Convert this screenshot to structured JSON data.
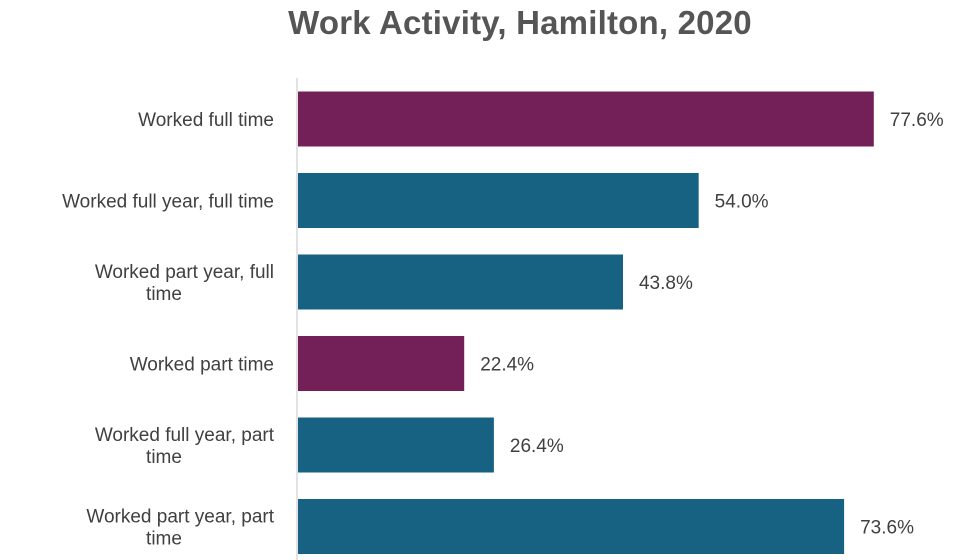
{
  "chart_data": {
    "type": "bar",
    "orientation": "horizontal",
    "title": "Work Activity, Hamilton, 2020",
    "categories": [
      "Worked full time",
      "Worked full year, full time",
      "Worked part year, full time",
      "Worked part time",
      "Worked full year, part time",
      "Worked part year, part time"
    ],
    "category_lines": [
      [
        "Worked full time"
      ],
      [
        "Worked full year, full time"
      ],
      [
        "Worked part year, full",
        "time"
      ],
      [
        "Worked part time"
      ],
      [
        "Worked full year, part",
        "time"
      ],
      [
        "Worked part year, part",
        "time"
      ]
    ],
    "values": [
      77.6,
      54.0,
      43.8,
      22.4,
      26.4,
      73.6
    ],
    "value_labels": [
      "77.6%",
      "54.0%",
      "43.8%",
      "22.4%",
      "26.4%",
      "73.6%"
    ],
    "bar_colors": [
      "#722057",
      "#176282",
      "#176282",
      "#722057",
      "#176282",
      "#176282"
    ],
    "xlim": [
      0,
      100
    ],
    "grid": false,
    "legend": "none"
  }
}
